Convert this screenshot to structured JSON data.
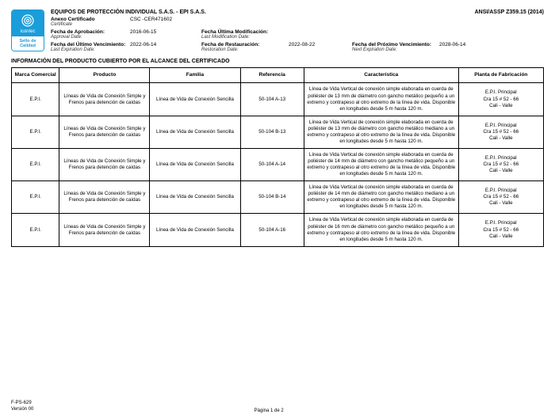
{
  "logo": {
    "brand": "icontec",
    "seal_l1": "Sello de",
    "seal_l2": "Calidad"
  },
  "header": {
    "company": "EQUIPOS DE PROTECCIÓN INDIVIDUAL S.A.S. - EPI S.A.S.",
    "standard": "ANSI/ASSP Z359.15 (2014)"
  },
  "meta": {
    "annex_lbl": "Anexo Certificado",
    "annex_it": "Certificate",
    "annex_val": "CSC -CER471602",
    "approval_lbl": "Fecha de Aprobación:",
    "approval_it": "Approval Date:",
    "approval_val": "2016-06-15",
    "lastmod_lbl": "Fecha Última Modificación:",
    "lastmod_it": "Last Modification Date:",
    "lastmod_val": "",
    "lastexp_lbl": "Fecha del Último Vencimiento:",
    "lastexp_it": "Last Expiration Date:",
    "lastexp_val": "2022-06-14",
    "restore_lbl": "Fecha de Restauración:",
    "restore_it": "Restoration Date:",
    "restore_val": "2022-08-22",
    "nextexp_lbl": "Fecha del Próximo Vencimiento:",
    "nextexp_it": "Next Expiration Date:",
    "nextexp_val": "2028-06-14"
  },
  "section_title": "INFORMACIÓN DEL PRODUCTO CUBIERTO POR EL ALCANCE DEL CERTIFICADO",
  "cols": {
    "marca": "Marca Comercial",
    "producto": "Producto",
    "familia": "Familia",
    "referencia": "Referencia",
    "caracteristica": "Característica",
    "planta": "Planta de Fabricación"
  },
  "rows": [
    {
      "marca": "E.P.I.",
      "producto": "Líneas de Vida de Conexión Simple y Frenos para detención de caídas",
      "familia": "Línea de Vida de Conexión Sencilla",
      "ref": "50-104 A-13",
      "car": "Línea de Vida Vertical de conexión simple elaborada en cuerda de poliéster de 13 mm de diámetro con gancho metálico pequeño a un extremo y contrapeso al otro extremo de la línea de vida. Disponible en longitudes desde 5 m hasta 120 m.",
      "planta": "E.P.I. Principal\nCra 15 # 52 - 66\nCali - Valle"
    },
    {
      "marca": "E.P.I.",
      "producto": "Líneas de Vida de Conexión Simple y Frenos para detención de caídas",
      "familia": "Línea de Vida de Conexión Sencilla",
      "ref": "50-104 B-13",
      "car": "Línea de Vida Vertical de conexión simple elaborada en cuerda de poliéster de 13 mm de diámetro con gancho metálico mediano a un extremo y contrapeso al otro extremo de la línea de vida. Disponible en longitudes desde 5 m hasta 120 m.",
      "planta": "E.P.I. Principal\nCra 15 # 52 - 66\nCali - Valle"
    },
    {
      "marca": "E.P.I.",
      "producto": "Líneas de Vida de Conexión Simple y Frenos para detención de caídas",
      "familia": "Línea de Vida de Conexión Sencilla",
      "ref": "50-104 A-14",
      "car": "Línea de Vida Vertical de conexión simple elaborada en cuerda de poliéster de 14 mm de diámetro con gancho metálico pequeño a un extremo y contrapeso al otro extremo de la línea de vida. Disponible en longitudes desde 5 m hasta 120 m.",
      "planta": "E.P.I. Principal\nCra 15 # 52 - 66\nCali - Valle"
    },
    {
      "marca": "E.P.I.",
      "producto": "Líneas de Vida de Conexión Simple y Frenos para detención de caídas",
      "familia": "Línea de Vida de Conexión Sencilla",
      "ref": "50-104 B-14",
      "car": "Línea de Vida Vertical de conexión simple elaborada en cuerda de poliéster de 14 mm de diámetro con gancho metálico mediano a un extremo y contrapeso al otro extremo de la línea de vida. Disponible en longitudes desde 5 m hasta 120 m.",
      "planta": "E.P.I. Principal\nCra 15 # 52 - 66\nCali - Valle"
    },
    {
      "marca": "E.P.I.",
      "producto": "Líneas de Vida de Conexión Simple y Frenos para detención de caídas",
      "familia": "Línea de Vida de Conexión Sencilla",
      "ref": "50-104 A-16",
      "car": "Línea de Vida Vertical de conexión simple elaborada en cuerda de poliéster de 16 mm de diámetro con gancho metálico pequeño a un extremo y contrapeso al otro extremo de la línea de vida. Disponible en longitudes desde 5 m hasta 120 m.",
      "planta": "E.P.I. Principal\nCra 15 # 52 - 66\nCali - Valle"
    }
  ],
  "footer": {
    "code": "F-PS-629",
    "version": "Versión 00",
    "page": "Página 1 de 2"
  }
}
